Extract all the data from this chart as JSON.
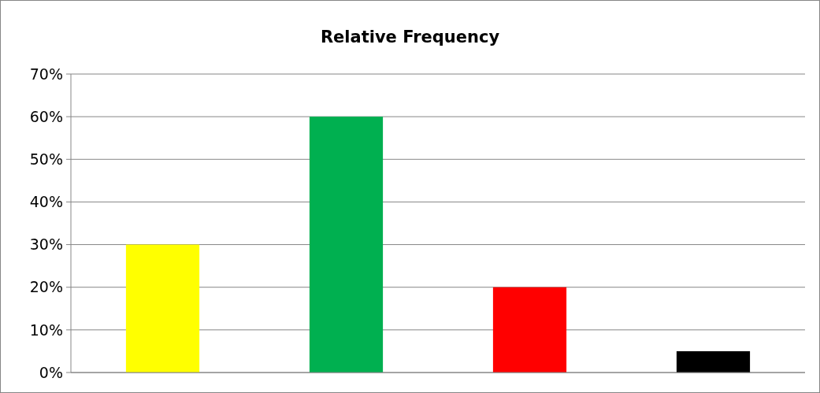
{
  "chart_data": {
    "type": "bar",
    "title": "Relative Frequency",
    "categories": [
      null,
      null,
      null,
      null
    ],
    "values": [
      30,
      60,
      20,
      5
    ],
    "colors": [
      "#ffff00",
      "#00b050",
      "#ff0000",
      "#000000"
    ],
    "ylim": [
      0,
      70
    ],
    "yticks": [
      {
        "value": 0,
        "label": "0%"
      },
      {
        "value": 10,
        "label": "10%"
      },
      {
        "value": 20,
        "label": "20%"
      },
      {
        "value": 30,
        "label": "30%"
      },
      {
        "value": 40,
        "label": "40%"
      },
      {
        "value": 50,
        "label": "50%"
      },
      {
        "value": 60,
        "label": "60%"
      },
      {
        "value": 70,
        "label": "70%"
      }
    ],
    "grid": "y"
  }
}
